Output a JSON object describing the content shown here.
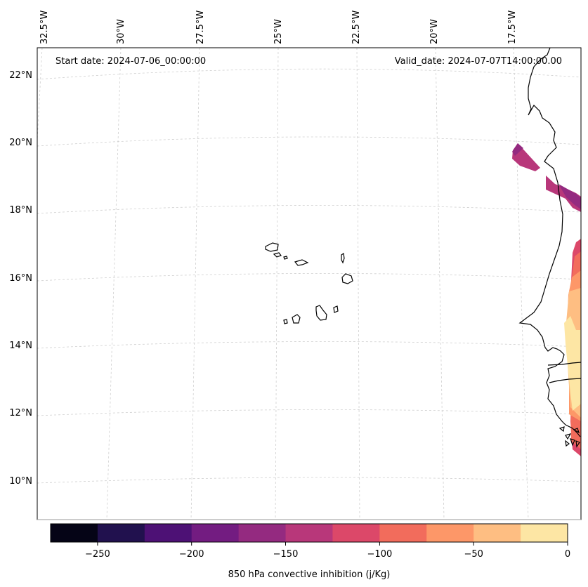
{
  "map": {
    "start_label": "Start date: 2024-07-06_00:00:00",
    "valid_label": "Valid_date: 2024-07-07T14:00:00.00",
    "lon_labels": [
      "32.5°W",
      "30°W",
      "27.5°W",
      "25°W",
      "22.5°W",
      "20°W",
      "17.5°W"
    ],
    "lat_labels": [
      "22°N",
      "20°N",
      "18°N",
      "16°N",
      "14°N",
      "12°N",
      "10°N"
    ],
    "features": [
      "cape-verde-islands",
      "west-africa-coastline",
      "senegal",
      "gambia-river",
      "mauritania"
    ]
  },
  "colorbar": {
    "label": "850 hPa convective inhibition (j/Kg)",
    "tick_labels": [
      "−250",
      "−200",
      "−150",
      "−100",
      "−50",
      "0"
    ],
    "levels": [
      -275,
      -250,
      -225,
      -200,
      -175,
      -150,
      -125,
      -100,
      -75,
      -50,
      -25,
      0
    ],
    "colors": [
      "#050416",
      "#21114e",
      "#4d1175",
      "#731c81",
      "#942a80",
      "#b8377a",
      "#dc4869",
      "#f26c5c",
      "#fd9768",
      "#febe82",
      "#fde6a4"
    ]
  }
}
